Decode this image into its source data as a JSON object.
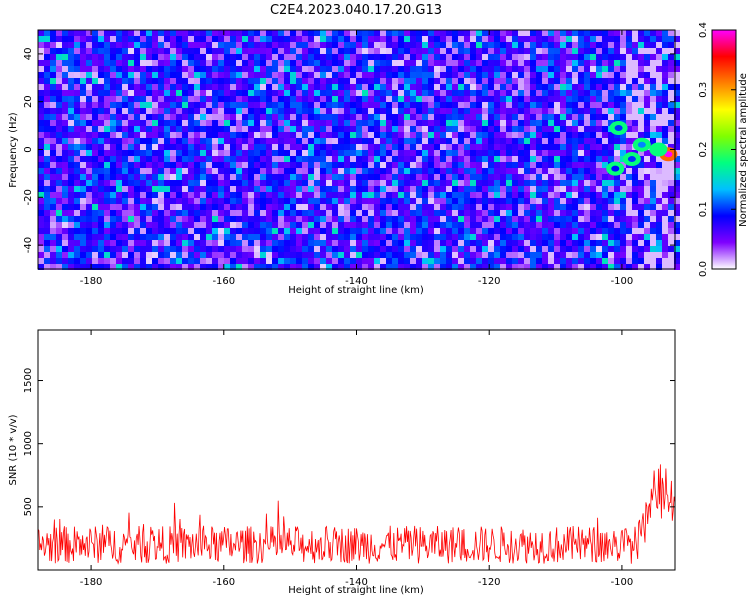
{
  "figure": {
    "title": "C2E4.2023.040.17.20.G13"
  },
  "chart_data": [
    {
      "type": "heatmap",
      "xlabel": "Height of straight line (km)",
      "ylabel": "Frequency (Hz)",
      "xlim": [
        -188,
        -92
      ],
      "ylim": [
        -50,
        50
      ],
      "xticks": [
        -180,
        -160,
        -140,
        -120,
        -100
      ],
      "yticks": [
        -40,
        -20,
        0,
        20,
        40
      ],
      "colorbar": {
        "label": "Normalized spectral amplitude",
        "range": [
          0.0,
          0.4
        ],
        "ticks": [
          "0.0",
          "0.1",
          "0.2",
          "0.3",
          "0.4"
        ],
        "colors": [
          "#ffffff",
          "#7f00ff",
          "#0000ff",
          "#00c0ff",
          "#00ff80",
          "#80ff00",
          "#ffff00",
          "#ff8000",
          "#ff0000",
          "#ff00ff"
        ]
      },
      "background_level": 0.06,
      "hotspots": [
        {
          "x": -93,
          "y": -2,
          "value": 0.4
        },
        {
          "x": -94.5,
          "y": 0,
          "value": 0.18
        },
        {
          "x": -97,
          "y": 2,
          "value": 0.12
        },
        {
          "x": -98.5,
          "y": -4,
          "value": 0.1
        },
        {
          "x": -100.5,
          "y": 9,
          "value": 0.1
        },
        {
          "x": -101,
          "y": -8,
          "value": 0.09
        }
      ]
    },
    {
      "type": "line",
      "xlabel": "Height of straight line (km)",
      "ylabel": "SNR (10 * v/v)",
      "xlim": [
        -188,
        -92
      ],
      "ylim": [
        0,
        1900
      ],
      "xticks": [
        -180,
        -160,
        -140,
        -120,
        -100
      ],
      "yticks": [
        500,
        1000,
        1500
      ],
      "series": [
        {
          "color": "#ff0000",
          "baseline": 200,
          "noise_amplitude": 150,
          "peak": {
            "x": -94,
            "value": 760
          }
        }
      ]
    }
  ]
}
